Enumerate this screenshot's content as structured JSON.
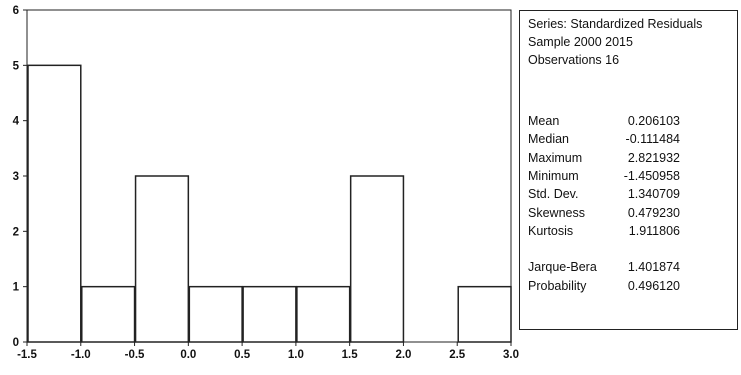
{
  "chart_data": {
    "type": "bar",
    "subtype": "histogram",
    "bins": [
      {
        "from": -1.5,
        "to": -1.0,
        "count": 5
      },
      {
        "from": -1.0,
        "to": -0.5,
        "count": 1
      },
      {
        "from": -0.5,
        "to": 0.0,
        "count": 3
      },
      {
        "from": 0.0,
        "to": 0.5,
        "count": 1
      },
      {
        "from": 0.5,
        "to": 1.0,
        "count": 1
      },
      {
        "from": 1.0,
        "to": 1.5,
        "count": 1
      },
      {
        "from": 1.5,
        "to": 2.0,
        "count": 3
      },
      {
        "from": 2.0,
        "to": 2.5,
        "count": 0
      },
      {
        "from": 2.5,
        "to": 3.0,
        "count": 1
      }
    ],
    "xlim": [
      -1.5,
      3.0
    ],
    "ylim": [
      0,
      6
    ],
    "xticks": [
      "-1.5",
      "-1.0",
      "-0.5",
      "0.0",
      "0.5",
      "1.0",
      "1.5",
      "2.0",
      "2.5",
      "3.0"
    ],
    "yticks": [
      "0",
      "1",
      "2",
      "3",
      "4",
      "5",
      "6"
    ],
    "grid": false,
    "bar_color": "#ffffff",
    "edge_color": "#222222"
  },
  "stats": {
    "series": "Series: Standardized Residuals",
    "sample": "Sample 2000 2015",
    "observations": "Observations 16",
    "rows": [
      {
        "label": "Mean",
        "value": "0.206103"
      },
      {
        "label": "Median",
        "value": "-0.111484"
      },
      {
        "label": "Maximum",
        "value": "2.821932"
      },
      {
        "label": "Minimum",
        "value": "-1.450958"
      },
      {
        "label": "Std. Dev.",
        "value": "1.340709"
      },
      {
        "label": "Skewness",
        "value": "0.479230"
      },
      {
        "label": "Kurtosis",
        "value": "1.911806"
      }
    ],
    "jb_rows": [
      {
        "label": "Jarque-Bera",
        "value": "1.401874"
      },
      {
        "label": "Probability",
        "value": "0.496120"
      }
    ]
  }
}
